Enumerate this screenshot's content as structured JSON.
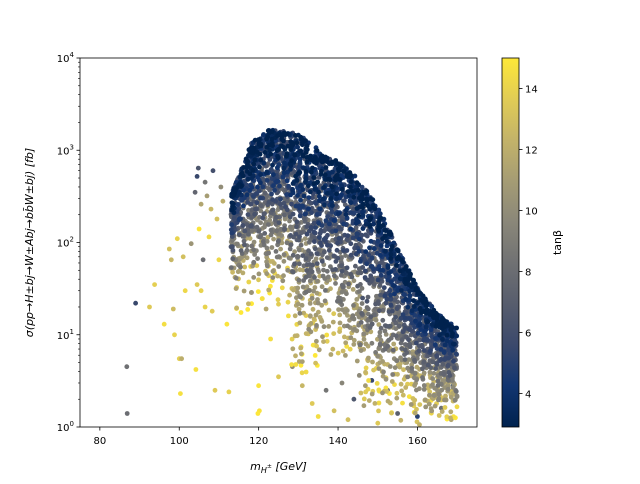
{
  "chart_data": {
    "type": "scatter",
    "title": "",
    "xlabel_math": {
      "base": "m",
      "sub": "H",
      "subsup": "±",
      "unit": "[GeV]"
    },
    "xlabel": "m_{H±} [GeV]",
    "ylabel": "σ(pp→H±bj→W±Abj→bb̄W±bj) [fb]",
    "xlim": [
      75,
      175
    ],
    "ylim": [
      1,
      10000
    ],
    "yscale": "log",
    "xticks": [
      80,
      100,
      120,
      140,
      160
    ],
    "xtick_labels": [
      "80",
      "100",
      "120",
      "140",
      "160"
    ],
    "yticks": [
      1,
      10,
      100,
      1000,
      10000
    ],
    "ytick_labels": [
      {
        "base": "10",
        "exp": "0"
      },
      {
        "base": "10",
        "exp": "1"
      },
      {
        "base": "10",
        "exp": "2"
      },
      {
        "base": "10",
        "exp": "3"
      },
      {
        "base": "10",
        "exp": "4"
      }
    ],
    "grid": false,
    "colorbar": {
      "label": "tanβ",
      "cmap": "cividis",
      "range": [
        2.9,
        15
      ],
      "ticks": [
        4,
        6,
        8,
        10,
        12,
        14
      ],
      "tick_labels": [
        "4",
        "6",
        "8",
        "10",
        "12",
        "14"
      ],
      "colors": [
        "#00224e",
        "#123570",
        "#3b496c",
        "#575d6d",
        "#707173",
        "#8a8779",
        "#a59c74",
        "#c3b369",
        "#e1cc55",
        "#fee838"
      ]
    },
    "series": [
      {
        "color_by": "tanβ",
        "marker_size": 4,
        "points": [
          [
            86.8,
            4.5,
            8.2
          ],
          [
            86.9,
            1.4,
            8.0
          ],
          [
            89.0,
            22.0,
            5.5
          ],
          [
            92.5,
            20.0,
            13.5
          ],
          [
            93.8,
            35.0,
            13.8
          ],
          [
            96.2,
            13.0,
            14.5
          ],
          [
            97.5,
            85.0,
            13.0
          ],
          [
            98.0,
            65.0,
            12.5
          ],
          [
            98.5,
            19.0,
            12.8
          ],
          [
            98.8,
            10.0,
            14.0
          ],
          [
            99.5,
            110.0,
            14.0
          ],
          [
            100.0,
            5.5,
            13.8
          ],
          [
            100.3,
            2.3,
            14.6
          ],
          [
            100.6,
            5.5,
            12.0
          ],
          [
            101.0,
            70.0,
            13.0
          ],
          [
            101.5,
            30.0,
            14.2
          ],
          [
            103.0,
            97.0,
            10.5
          ],
          [
            104.2,
            4.2,
            14.6
          ],
          [
            104.5,
            35.0,
            13.5
          ],
          [
            105.0,
            140.0,
            14.8
          ],
          [
            105.5,
            30.0,
            14.0
          ],
          [
            106.0,
            65.0,
            8.0
          ],
          [
            106.5,
            20.0,
            14.0
          ],
          [
            107.5,
            115.0,
            14.3
          ],
          [
            108.3,
            18.0,
            13.6
          ],
          [
            109.0,
            2.5,
            13.5
          ],
          [
            110.0,
            65.0,
            14.2
          ],
          [
            112.0,
            13.0,
            14.8
          ],
          [
            112.5,
            2.4,
            13.9
          ],
          [
            104.0,
            350.0,
            7.5
          ],
          [
            104.5,
            520.0,
            5.5
          ],
          [
            104.8,
            640.0,
            6.5
          ],
          [
            105.5,
            260.0,
            11.5
          ],
          [
            106.5,
            450.0,
            8.5
          ],
          [
            107.0,
            320.0,
            11.0
          ],
          [
            108.0,
            230.0,
            12.5
          ],
          [
            108.5,
            600.0,
            6.0
          ],
          [
            109.5,
            180.0,
            13.0
          ],
          [
            110.5,
            400.0,
            10.0
          ],
          [
            111.0,
            280.0,
            12.0
          ],
          [
            118.0,
            55.0,
            14.0
          ],
          [
            120.0,
            2.8,
            14.8
          ],
          [
            120.2,
            1.5,
            14.7
          ],
          [
            119.8,
            1.4,
            14.9
          ],
          [
            123.0,
            9.0,
            14.5
          ],
          [
            125.0,
            3.5,
            13.5
          ],
          [
            127.5,
            16.0,
            14.5
          ],
          [
            128.5,
            4.5,
            10.0
          ],
          [
            131.0,
            2.8,
            12.5
          ],
          [
            133.5,
            1.8,
            13.5
          ],
          [
            135.0,
            1.3,
            14.5
          ],
          [
            137.0,
            2.5,
            8.5
          ],
          [
            139.0,
            1.5,
            13.0
          ],
          [
            141.0,
            3.0,
            9.5
          ],
          [
            142.5,
            1.2,
            13.0
          ],
          [
            144.0,
            2.0,
            6.5
          ],
          [
            146.5,
            1.7,
            11.0
          ],
          [
            148.5,
            3.2,
            5.5
          ],
          [
            150.0,
            1.1,
            13.5
          ],
          [
            152.5,
            2.5,
            9.0
          ],
          [
            155.0,
            1.4,
            7.0
          ],
          [
            157.0,
            3.5,
            12.0
          ],
          [
            160.0,
            1.3,
            5.0
          ],
          [
            163.0,
            2.2,
            13.5
          ],
          [
            166.0,
            1.6,
            8.0
          ],
          [
            168.5,
            1.2,
            11.5
          ],
          [
            169.0,
            2.8,
            4.0
          ]
        ]
      }
    ]
  }
}
